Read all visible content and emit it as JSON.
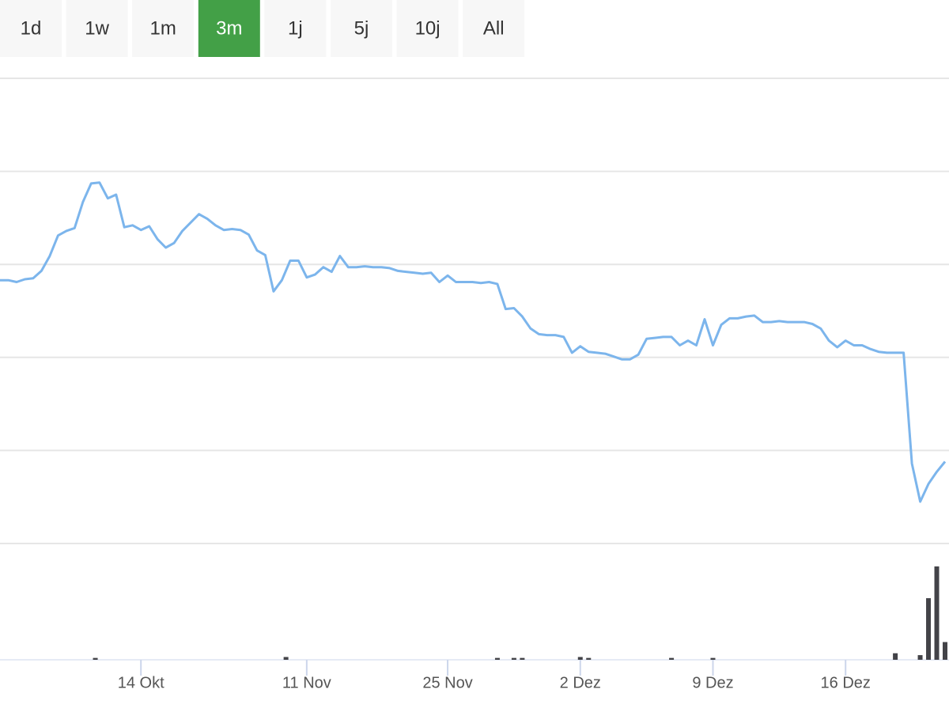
{
  "range_buttons": {
    "labels": [
      "1d",
      "1w",
      "1m",
      "3m",
      "1j",
      "5j",
      "10j",
      "All"
    ],
    "selected": 3,
    "color": "#fff",
    "selected_color": "#43a047"
  },
  "chart_data": {
    "type": "line",
    "values": [
      283,
      283,
      281,
      284,
      285,
      293,
      309,
      331,
      336,
      339,
      367,
      387,
      388,
      371,
      375,
      340,
      342,
      337,
      341,
      327,
      318,
      323,
      336,
      345,
      354,
      349,
      342,
      337,
      338,
      337,
      332,
      315,
      310,
      271,
      283,
      304,
      304,
      286,
      289,
      297,
      292,
      309,
      297,
      297,
      298,
      297,
      297,
      296,
      293,
      292,
      291,
      290,
      291,
      281,
      288,
      281,
      281,
      281,
      280,
      281,
      279,
      252,
      253,
      244,
      231,
      225,
      224,
      224,
      222,
      205,
      212,
      206,
      205,
      204,
      201,
      198,
      198,
      203,
      220,
      221,
      222,
      222,
      213,
      218,
      213,
      241,
      213,
      235,
      242,
      242,
      244,
      245,
      238,
      238,
      239,
      238,
      238,
      238,
      236,
      231,
      218,
      211,
      218,
      213,
      213,
      209,
      206,
      205,
      205,
      205,
      86,
      45,
      64,
      77,
      88
    ],
    "color": "#7cb5ec",
    "ylim": [
      0,
      500
    ],
    "yticks": [
      0,
      100,
      200,
      300,
      400,
      500
    ],
    "grid": true,
    "xlim": [
      0,
      114
    ],
    "xticks": [
      {
        "value": 17,
        "label": "14 Okt"
      },
      {
        "value": 37,
        "label": "11 Nov"
      },
      {
        "value": 54,
        "label": "25 Nov"
      },
      {
        "value": 70,
        "label": "2 Dez"
      },
      {
        "value": 86,
        "label": "9 Dez"
      },
      {
        "value": 102,
        "label": "16 Dez"
      }
    ],
    "volume": {
      "x": [
        11.5,
        34.5,
        60,
        62,
        63,
        70,
        71,
        81,
        86,
        108,
        111,
        112,
        113,
        114
      ],
      "values": [
        2,
        3,
        2,
        2,
        2,
        3,
        2,
        2,
        2,
        7,
        5,
        66,
        100,
        19
      ],
      "color": "#434348"
    },
    "y2lim": [
      0,
      100
    ]
  }
}
